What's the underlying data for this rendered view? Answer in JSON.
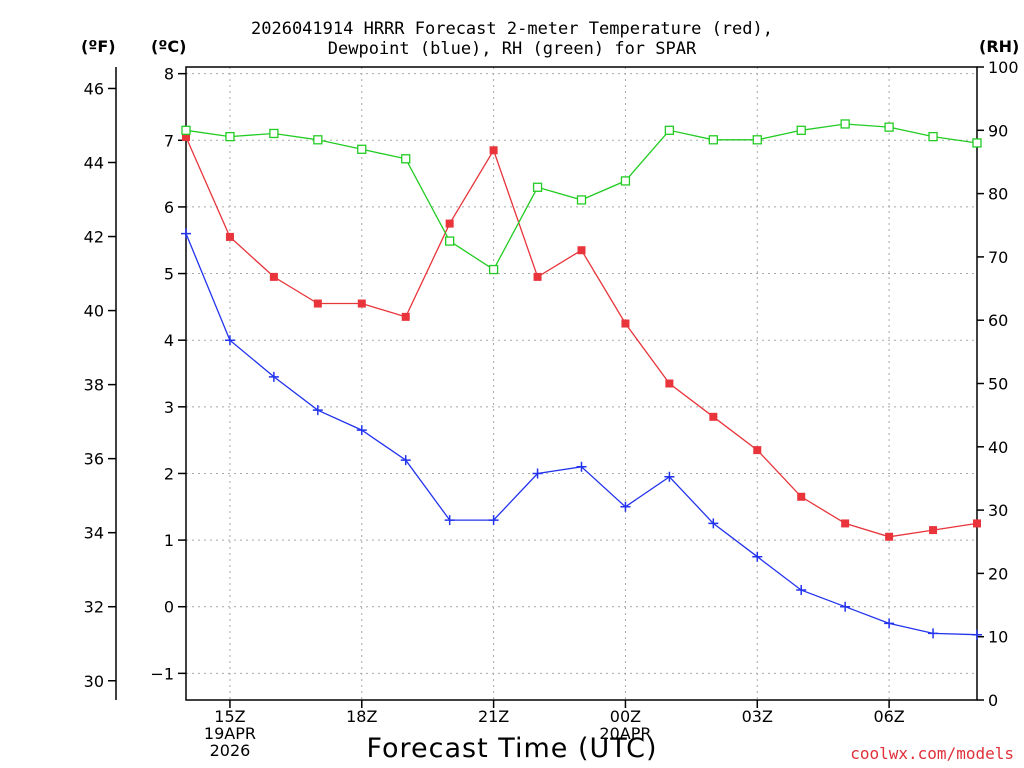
{
  "chart_data": {
    "type": "line",
    "title": "2026041914 HRRR Forecast 2-meter Temperature (red),",
    "subtitle": "Dewpoint (blue), RH (green) for SPAR",
    "xlabel": "Forecast Time (UTC)",
    "left_outer_unit": "(ºF)",
    "left_inner_unit": "(ºC)",
    "right_unit": "(RH)",
    "credit": "coolwx.com/models",
    "ylim_c": [
      -1.4,
      8.1
    ],
    "ylim_rh": [
      0,
      100
    ],
    "yticks_c": [
      -1,
      0,
      1,
      2,
      3,
      4,
      5,
      6,
      7,
      8
    ],
    "yticks_c_labels": [
      "−1",
      "0",
      "1",
      "2",
      "3",
      "4",
      "5",
      "6",
      "7",
      "8"
    ],
    "yticks_f": [
      30,
      32,
      34,
      36,
      38,
      40,
      42,
      44,
      46
    ],
    "yticks_rh": [
      0,
      10,
      20,
      30,
      40,
      50,
      60,
      70,
      80,
      90,
      100
    ],
    "x_hours": [
      14,
      15,
      16,
      17,
      18,
      19,
      20,
      21,
      22,
      23,
      24,
      25,
      26,
      27,
      28,
      29,
      30,
      31,
      32
    ],
    "x_ticks": [
      {
        "hour": 15,
        "lines": [
          "15Z",
          "19APR",
          "2026"
        ]
      },
      {
        "hour": 18,
        "lines": [
          "18Z"
        ]
      },
      {
        "hour": 21,
        "lines": [
          "21Z"
        ]
      },
      {
        "hour": 24,
        "lines": [
          "00Z",
          "20APR"
        ]
      },
      {
        "hour": 27,
        "lines": [
          "03Z"
        ]
      },
      {
        "hour": 30,
        "lines": [
          "06Z"
        ]
      }
    ],
    "series": [
      {
        "name": "Temperature",
        "unit": "C",
        "color": "#e8343a",
        "marker": "filled-square",
        "values": [
          7.05,
          5.55,
          4.95,
          4.55,
          4.55,
          4.35,
          5.75,
          6.85,
          4.95,
          5.35,
          4.25,
          3.35,
          2.85,
          2.35,
          1.65,
          1.25,
          1.05,
          1.15,
          1.25
        ]
      },
      {
        "name": "Dewpoint",
        "unit": "C",
        "color": "#2233ee",
        "marker": "plus",
        "values": [
          5.6,
          4.0,
          3.45,
          2.95,
          2.65,
          2.2,
          1.3,
          1.3,
          2.0,
          2.1,
          1.5,
          1.95,
          1.25,
          0.75,
          0.25,
          0.0,
          -0.25,
          -0.4,
          -0.42
        ]
      },
      {
        "name": "RH",
        "unit": "%",
        "color": "#22cc22",
        "marker": "open-square",
        "values": [
          90,
          89,
          89.5,
          88.5,
          87,
          85.5,
          72.5,
          68,
          81,
          79,
          82,
          90,
          88.5,
          88.5,
          90,
          91,
          90.5,
          89,
          88
        ]
      }
    ]
  }
}
